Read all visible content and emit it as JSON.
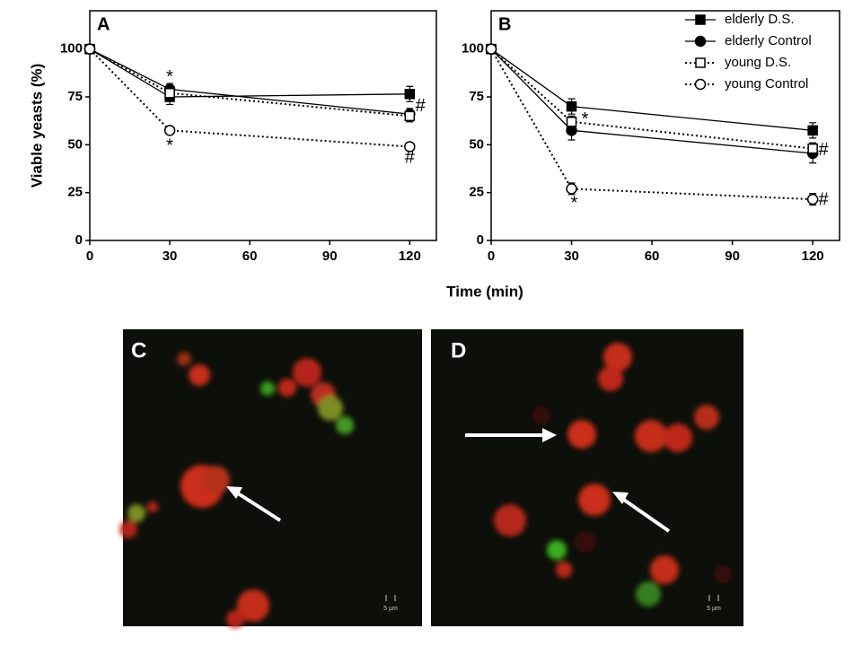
{
  "chart_data": [
    {
      "type": "line",
      "panel_label": "A",
      "ylabel": "Viable yeasts (%)",
      "xlabel": "Time (min)",
      "x": [
        0,
        30,
        120
      ],
      "xlim": [
        0,
        130
      ],
      "xticks": [
        0,
        30,
        60,
        90,
        120
      ],
      "ylim": [
        0,
        120
      ],
      "yticks": [
        0,
        25,
        50,
        75,
        100
      ],
      "series": [
        {
          "name": "elderly D.S.",
          "color": "#000000",
          "marker": "square",
          "filled": true,
          "linestyle": "solid",
          "values": [
            100,
            75,
            76.5
          ],
          "errors": [
            0,
            4,
            4
          ]
        },
        {
          "name": "elderly Control",
          "color": "#000000",
          "marker": "circle",
          "filled": true,
          "linestyle": "solid",
          "values": [
            100,
            79,
            66
          ],
          "errors": [
            0,
            3,
            3
          ]
        },
        {
          "name": "young D.S.",
          "color": "#000000",
          "marker": "square",
          "filled": false,
          "linestyle": "dotted",
          "values": [
            100,
            77,
            65
          ],
          "errors": [
            0,
            3,
            3
          ]
        },
        {
          "name": "young Control",
          "color": "#000000",
          "marker": "circle",
          "filled": false,
          "linestyle": "dotted",
          "values": [
            100,
            57.5,
            49
          ],
          "errors": [
            0,
            2,
            2
          ]
        }
      ],
      "annotations": [
        {
          "text": "*",
          "x": 30,
          "y": 85
        },
        {
          "text": "*",
          "x": 30,
          "y": 49
        },
        {
          "text": "#",
          "x": 124,
          "y": 70
        },
        {
          "text": "#",
          "x": 120,
          "y": 43
        }
      ]
    },
    {
      "type": "line",
      "panel_label": "B",
      "legend": "upper right",
      "x": [
        0,
        30,
        120
      ],
      "xlim": [
        0,
        130
      ],
      "xticks": [
        0,
        30,
        60,
        90,
        120
      ],
      "ylim": [
        0,
        120
      ],
      "yticks": [
        0,
        25,
        50,
        75,
        100
      ],
      "series": [
        {
          "name": "elderly D.S.",
          "color": "#000000",
          "marker": "square",
          "filled": true,
          "linestyle": "solid",
          "values": [
            100,
            70,
            57.5
          ],
          "errors": [
            0,
            4,
            4
          ]
        },
        {
          "name": "elderly Control",
          "color": "#000000",
          "marker": "circle",
          "filled": true,
          "linestyle": "solid",
          "values": [
            100,
            57.5,
            45.5
          ],
          "errors": [
            0,
            5,
            5
          ]
        },
        {
          "name": "young D.S.",
          "color": "#000000",
          "marker": "square",
          "filled": false,
          "linestyle": "dotted",
          "values": [
            100,
            62,
            48
          ],
          "errors": [
            0,
            3,
            3
          ]
        },
        {
          "name": "young Control",
          "color": "#000000",
          "marker": "circle",
          "filled": false,
          "linestyle": "dotted",
          "values": [
            100,
            27,
            21.5
          ],
          "errors": [
            0,
            3,
            3
          ]
        }
      ],
      "annotations": [
        {
          "text": "*",
          "x": 35,
          "y": 63
        },
        {
          "text": "*",
          "x": 31,
          "y": 19
        },
        {
          "text": "#",
          "x": 124,
          "y": 47
        },
        {
          "text": "#",
          "x": 124,
          "y": 21
        }
      ]
    }
  ],
  "image_panels": [
    {
      "label": "C",
      "scale_bar": "5 µm"
    },
    {
      "label": "D",
      "scale_bar": "5 µm"
    }
  ]
}
